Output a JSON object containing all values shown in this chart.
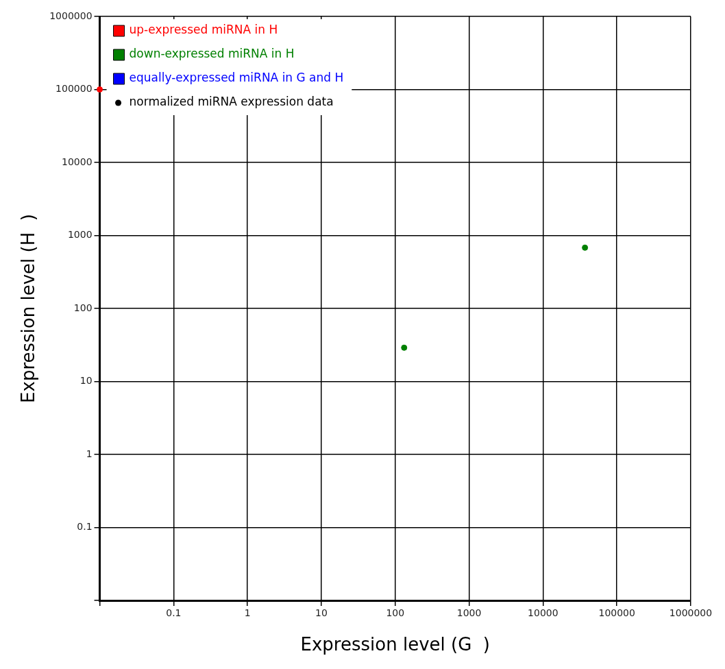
{
  "chart_data": {
    "type": "scatter",
    "xlabel": "Expression level (G  )",
    "ylabel": "Expression level (H  )",
    "log": "xy",
    "xlim": [
      0.01,
      1000000
    ],
    "ylim": [
      0.01,
      1000000
    ],
    "xticks": [
      {
        "value": 0.01,
        "label": null
      },
      0.1,
      1,
      10,
      100,
      1000,
      10000,
      100000,
      1000000
    ],
    "yticks": [
      {
        "value": 0.01,
        "label": null
      },
      0.1,
      1,
      10,
      100,
      1000,
      10000,
      100000,
      1000000
    ],
    "grid": true,
    "legend": "top left",
    "marker": "circle",
    "series": [
      {
        "name": "up-expressed miRNA in H",
        "color": "#ff0000",
        "x": [
          0.01
        ],
        "values": [
          100000
        ]
      },
      {
        "name": "down-expressed miRNA in H",
        "color": "#008000",
        "x": [
          132,
          37000
        ],
        "values": [
          29,
          680
        ]
      },
      {
        "name": "equally-expressed miRNA in G and H",
        "color": "#0000ff"
      },
      {
        "name": "normalized miRNA expression data",
        "color": "#000000"
      }
    ]
  }
}
